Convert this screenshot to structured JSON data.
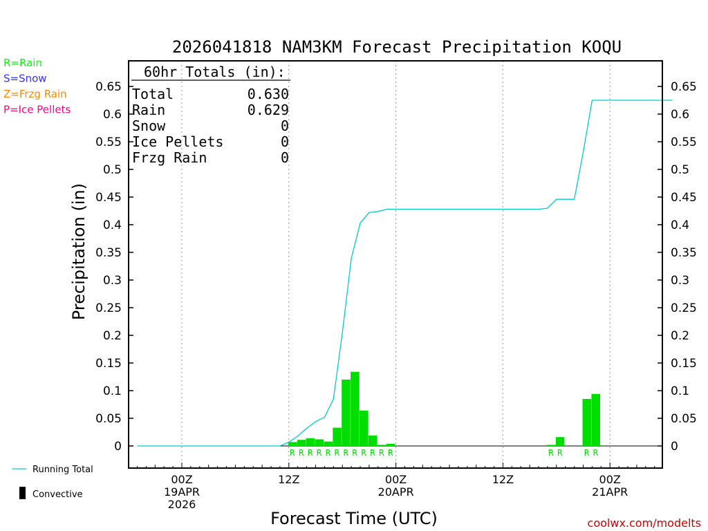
{
  "chart_data": {
    "type": "bar",
    "title": "2026041818 NAM3KM Forecast Precipitation KOQU",
    "xlabel": "Forecast Time (UTC)",
    "ylabel": "Precipitation (in)",
    "ylim": [
      -0.04,
      0.69
    ],
    "xlim_hours": [
      -5,
      55
    ],
    "yticks": [
      0,
      0.05,
      0.1,
      0.15,
      0.2,
      0.25,
      0.3,
      0.35,
      0.4,
      0.45,
      0.5,
      0.55,
      0.6,
      0.65
    ],
    "ytick_labels": [
      "0",
      "0.05",
      "0.1",
      "0.15",
      "0.2",
      "0.25",
      "0.3",
      "0.35",
      "0.4",
      "0.45",
      "0.5",
      "0.55",
      "0.6",
      "0.65"
    ],
    "xticks": [
      {
        "hour": 0,
        "lines": [
          "00Z",
          "19APR",
          "2026"
        ]
      },
      {
        "hour": 12,
        "lines": [
          "12Z"
        ]
      },
      {
        "hour": 24,
        "lines": [
          "00Z",
          "20APR"
        ]
      },
      {
        "hour": 36,
        "lines": [
          "12Z"
        ]
      },
      {
        "hour": 48,
        "lines": [
          "00Z",
          "21APR"
        ]
      }
    ],
    "series": [
      {
        "name": "Rain",
        "kind": "bar",
        "color": "#00dd00",
        "hours": [
          12,
          13,
          14,
          15,
          16,
          17,
          18,
          19,
          20,
          21,
          22,
          23,
          41,
          42,
          45,
          46
        ],
        "values": [
          0.007,
          0.011,
          0.014,
          0.012,
          0.008,
          0.033,
          0.12,
          0.134,
          0.064,
          0.019,
          0.002,
          0.004,
          0.002,
          0.016,
          0.085,
          0.094
        ]
      },
      {
        "name": "Running Total",
        "kind": "line",
        "color": "#00cccc",
        "hours": [
          -5,
          11,
          12,
          13,
          14,
          15,
          16,
          17,
          18,
          19,
          20,
          21,
          22,
          23,
          24,
          40,
          41,
          42,
          43,
          44,
          45,
          46,
          47,
          48,
          55
        ],
        "values": [
          0,
          0,
          0.007,
          0.018,
          0.032,
          0.044,
          0.052,
          0.085,
          0.205,
          0.339,
          0.403,
          0.422,
          0.424,
          0.428,
          0.428,
          0.428,
          0.43,
          0.446,
          0.446,
          0.446,
          0.531,
          0.625,
          0.625,
          0.625,
          0.625
        ]
      }
    ],
    "type_markers": {
      "letter": "R",
      "color": "#00dd00",
      "hours": [
        12,
        13,
        14,
        15,
        16,
        17,
        18,
        19,
        20,
        21,
        22,
        23,
        41,
        42,
        45,
        46
      ]
    },
    "legend_types": [
      {
        "label": "R=Rain",
        "color": "#00ff00"
      },
      {
        "label": "S=Snow",
        "color": "#3333ff"
      },
      {
        "label": "Z=Frzg Rain",
        "color": "#ff8800"
      },
      {
        "label": "P=Ice Pellets",
        "color": "#ff0088"
      }
    ],
    "legend_bottom": [
      {
        "label": "Running Total",
        "color": "#00cccc"
      },
      {
        "label": "Convective",
        "color": "#000000"
      }
    ],
    "totals": {
      "header": "60hr Totals (in):",
      "rows": [
        {
          "label": "Total",
          "value": "0.630"
        },
        {
          "label": "Rain",
          "value": "0.629"
        },
        {
          "label": "Snow",
          "value": "0"
        },
        {
          "label": "Ice Pellets",
          "value": "0"
        },
        {
          "label": "Frzg Rain",
          "value": "0"
        }
      ]
    },
    "credit": "coolwx.com/modelts",
    "credit_color": "#cc0000"
  }
}
